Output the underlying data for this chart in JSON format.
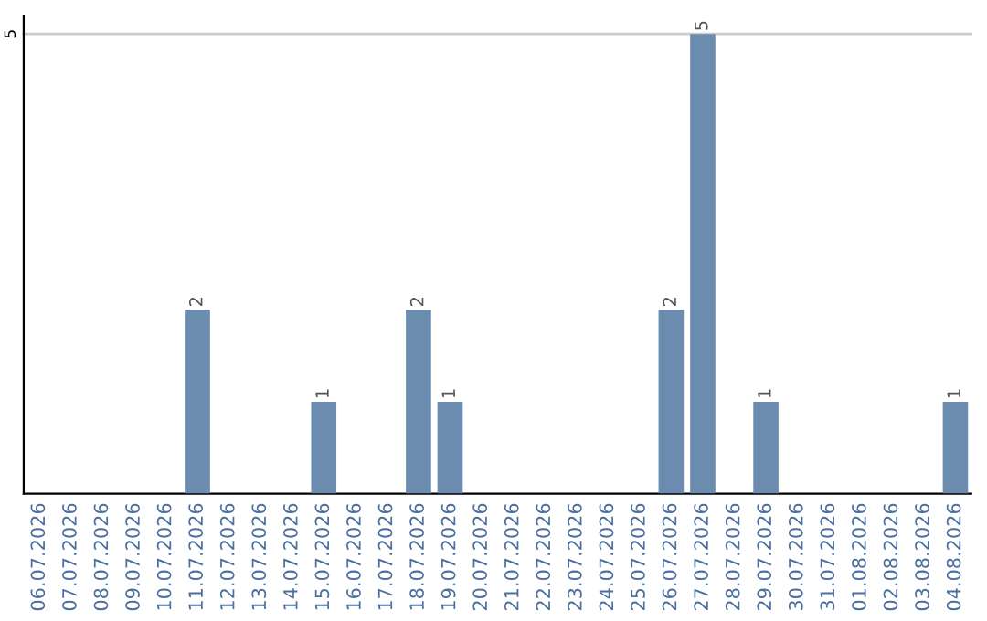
{
  "chart_data": {
    "type": "bar",
    "categories": [
      "06.07.2026",
      "07.07.2026",
      "08.07.2026",
      "09.07.2026",
      "10.07.2026",
      "11.07.2026",
      "12.07.2026",
      "13.07.2026",
      "14.07.2026",
      "15.07.2026",
      "16.07.2026",
      "17.07.2026",
      "18.07.2026",
      "19.07.2026",
      "20.07.2026",
      "21.07.2026",
      "22.07.2026",
      "23.07.2026",
      "24.07.2026",
      "25.07.2026",
      "26.07.2026",
      "27.07.2026",
      "28.07.2026",
      "29.07.2026",
      "30.07.2026",
      "31.07.2026",
      "01.08.2026",
      "02.08.2026",
      "03.08.2026",
      "04.08.2026"
    ],
    "values": [
      0,
      0,
      0,
      0,
      0,
      2,
      0,
      0,
      0,
      1,
      0,
      0,
      2,
      1,
      0,
      0,
      0,
      0,
      0,
      0,
      2,
      5,
      0,
      1,
      0,
      0,
      0,
      0,
      0,
      1
    ],
    "value_labels": [
      null,
      null,
      null,
      null,
      null,
      "2",
      null,
      null,
      null,
      "1",
      null,
      null,
      "2",
      "1",
      null,
      null,
      null,
      null,
      null,
      null,
      "2",
      "5",
      null,
      "1",
      null,
      null,
      null,
      null,
      null,
      "1"
    ],
    "color": "#6b8cae",
    "ylim": [
      0,
      5.2
    ],
    "yticks": [
      5
    ],
    "grid": "y"
  }
}
